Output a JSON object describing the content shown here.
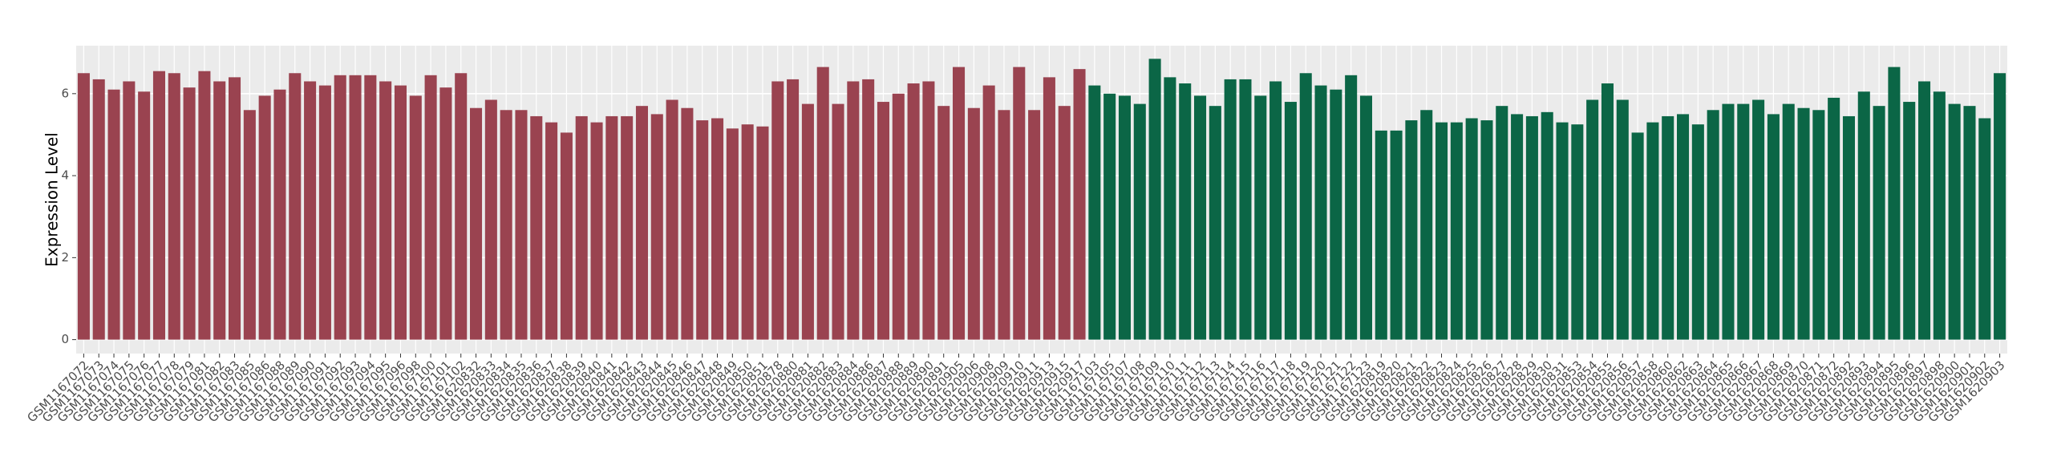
{
  "chart_data": {
    "type": "bar",
    "y_label": "Expression Level",
    "categories": [
      "GSM1167072",
      "GSM1167073",
      "GSM1167074",
      "GSM1167075",
      "GSM1167076",
      "GSM1167077",
      "GSM1167078",
      "GSM1167079",
      "GSM1167081",
      "GSM1167082",
      "GSM1167083",
      "GSM1167085",
      "GSM1167086",
      "GSM1167088",
      "GSM1167089",
      "GSM1167090",
      "GSM1167091",
      "GSM1167092",
      "GSM1167093",
      "GSM1167094",
      "GSM1167095",
      "GSM1167096",
      "GSM1167098",
      "GSM1167100",
      "GSM1167101",
      "GSM1167102",
      "GSM1620832",
      "GSM1620833",
      "GSM1620834",
      "GSM1620835",
      "GSM1620836",
      "GSM1620837",
      "GSM1620838",
      "GSM1620839",
      "GSM1620840",
      "GSM1620841",
      "GSM1620842",
      "GSM1620843",
      "GSM1620844",
      "GSM1620845",
      "GSM1620846",
      "GSM1620847",
      "GSM1620848",
      "GSM1620849",
      "GSM1620850",
      "GSM1620851",
      "GSM1620878",
      "GSM1620880",
      "GSM1620881",
      "GSM1620882",
      "GSM1620883",
      "GSM1620884",
      "GSM1620886",
      "GSM1620887",
      "GSM1620888",
      "GSM1620889",
      "GSM1620890",
      "GSM1620891",
      "GSM1620905",
      "GSM1620906",
      "GSM1620908",
      "GSM1620909",
      "GSM1620910",
      "GSM1620911",
      "GSM1620913",
      "GSM1620915",
      "GSM1620917",
      "GSM1167103",
      "GSM1167105",
      "GSM1167107",
      "GSM1167108",
      "GSM1167109",
      "GSM1167110",
      "GSM1167111",
      "GSM1167112",
      "GSM1167113",
      "GSM1167114",
      "GSM1167115",
      "GSM1167116",
      "GSM1167117",
      "GSM1167118",
      "GSM1167119",
      "GSM1167120",
      "GSM1167121",
      "GSM1167122",
      "GSM1167123",
      "GSM1620819",
      "GSM1620820",
      "GSM1620821",
      "GSM1620822",
      "GSM1620823",
      "GSM1620824",
      "GSM1620825",
      "GSM1620826",
      "GSM1620827",
      "GSM1620828",
      "GSM1620829",
      "GSM1620830",
      "GSM1620831",
      "GSM1620853",
      "GSM1620854",
      "GSM1620855",
      "GSM1620856",
      "GSM1620857",
      "GSM1620858",
      "GSM1620860",
      "GSM1620862",
      "GSM1620863",
      "GSM1620864",
      "GSM1620865",
      "GSM1620866",
      "GSM1620867",
      "GSM1620868",
      "GSM1620869",
      "GSM1620870",
      "GSM1620871",
      "GSM1620872",
      "GSM1620892",
      "GSM1620893",
      "GSM1620894",
      "GSM1620895",
      "GSM1620896",
      "GSM1620897",
      "GSM1620898",
      "GSM1620900",
      "GSM1620901",
      "GSM1620902",
      "GSM1620903"
    ],
    "values": [
      6.5,
      6.35,
      6.1,
      6.3,
      6.05,
      6.55,
      6.5,
      6.15,
      6.55,
      6.3,
      6.4,
      5.6,
      5.95,
      6.1,
      6.5,
      6.3,
      6.2,
      6.45,
      6.45,
      6.45,
      6.3,
      6.2,
      5.95,
      6.45,
      6.15,
      6.5,
      5.65,
      5.85,
      5.6,
      5.6,
      5.45,
      5.3,
      5.05,
      5.45,
      5.3,
      5.45,
      5.45,
      5.7,
      5.5,
      5.85,
      5.65,
      5.35,
      5.4,
      5.15,
      5.25,
      5.2,
      6.3,
      6.35,
      5.75,
      6.65,
      5.75,
      6.3,
      6.35,
      5.8,
      6.0,
      6.25,
      6.3,
      5.7,
      6.65,
      5.65,
      6.2,
      5.6,
      6.65,
      5.6,
      6.4,
      5.7,
      6.6,
      6.2,
      6.0,
      5.95,
      5.75,
      6.85,
      6.4,
      6.25,
      5.95,
      5.7,
      6.35,
      6.35,
      5.95,
      6.3,
      5.8,
      6.5,
      6.2,
      6.1,
      6.45,
      5.95,
      5.1,
      5.1,
      5.35,
      5.6,
      5.3,
      5.3,
      5.4,
      5.35,
      5.7,
      5.5,
      5.45,
      5.55,
      5.3,
      5.25,
      5.85,
      6.25,
      5.85,
      5.05,
      5.3,
      5.45,
      5.5,
      5.25,
      5.6,
      5.75,
      5.75,
      5.85,
      5.5,
      5.75,
      5.65,
      5.6,
      5.9,
      5.45,
      6.05,
      5.7,
      6.65,
      5.8,
      6.3,
      6.05,
      5.75,
      5.7,
      5.4,
      6.5
    ],
    "colors": [
      "#9a4350",
      "#9a4350",
      "#9a4350",
      "#9a4350",
      "#9a4350",
      "#9a4350",
      "#9a4350",
      "#9a4350",
      "#9a4350",
      "#9a4350",
      "#9a4350",
      "#9a4350",
      "#9a4350",
      "#9a4350",
      "#9a4350",
      "#9a4350",
      "#9a4350",
      "#9a4350",
      "#9a4350",
      "#9a4350",
      "#9a4350",
      "#9a4350",
      "#9a4350",
      "#9a4350",
      "#9a4350",
      "#9a4350",
      "#9a4350",
      "#9a4350",
      "#9a4350",
      "#9a4350",
      "#9a4350",
      "#9a4350",
      "#9a4350",
      "#9a4350",
      "#9a4350",
      "#9a4350",
      "#9a4350",
      "#9a4350",
      "#9a4350",
      "#9a4350",
      "#9a4350",
      "#9a4350",
      "#9a4350",
      "#9a4350",
      "#9a4350",
      "#9a4350",
      "#9a4350",
      "#9a4350",
      "#9a4350",
      "#9a4350",
      "#9a4350",
      "#9a4350",
      "#9a4350",
      "#9a4350",
      "#9a4350",
      "#9a4350",
      "#9a4350",
      "#9a4350",
      "#9a4350",
      "#9a4350",
      "#9a4350",
      "#9a4350",
      "#9a4350",
      "#9a4350",
      "#9a4350",
      "#9a4350",
      "#9a4350",
      "#0b6646",
      "#0b6646",
      "#0b6646",
      "#0b6646",
      "#0b6646",
      "#0b6646",
      "#0b6646",
      "#0b6646",
      "#0b6646",
      "#0b6646",
      "#0b6646",
      "#0b6646",
      "#0b6646",
      "#0b6646",
      "#0b6646",
      "#0b6646",
      "#0b6646",
      "#0b6646",
      "#0b6646",
      "#0b6646",
      "#0b6646",
      "#0b6646",
      "#0b6646",
      "#0b6646",
      "#0b6646",
      "#0b6646",
      "#0b6646",
      "#0b6646",
      "#0b6646",
      "#0b6646",
      "#0b6646",
      "#0b6646",
      "#0b6646",
      "#0b6646",
      "#0b6646",
      "#0b6646",
      "#0b6646",
      "#0b6646",
      "#0b6646",
      "#0b6646",
      "#0b6646",
      "#0b6646",
      "#0b6646",
      "#0b6646",
      "#0b6646",
      "#0b6646",
      "#0b6646",
      "#0b6646",
      "#0b6646",
      "#0b6646",
      "#0b6646",
      "#0b6646",
      "#0b6646",
      "#0b6646",
      "#0b6646",
      "#0b6646",
      "#0b6646",
      "#0b6646",
      "#0b6646",
      "#0b6646",
      "#0b6646"
    ],
    "ylim": [
      -0.34,
      7.17
    ],
    "yticks": [
      0,
      2,
      4,
      6
    ],
    "grid": true
  }
}
